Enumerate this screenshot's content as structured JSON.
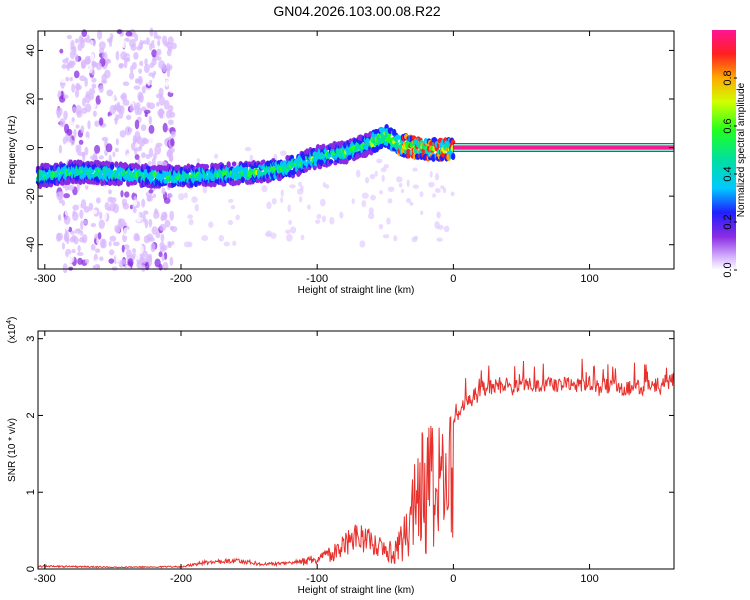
{
  "title": "GN04.2026.103.00.08.R22",
  "chart_data": [
    {
      "type": "heatmap",
      "name": "spectrogram",
      "xlabel": "Height of straight line (km)",
      "ylabel": "Frequency (Hz)",
      "xlim": [
        -305,
        162
      ],
      "ylim": [
        -50,
        48
      ],
      "xticks": [
        -300,
        -200,
        -100,
        0,
        100
      ],
      "yticks": [
        -40,
        -20,
        0,
        20,
        40
      ],
      "colorbar": {
        "label": "Normalized spectral amplitude",
        "range": [
          0,
          1
        ],
        "ticks": [
          0.0,
          0.2,
          0.4,
          0.6,
          0.8
        ]
      },
      "ridge": [
        {
          "x": -305,
          "y": -12
        },
        {
          "x": -280,
          "y": -10
        },
        {
          "x": -240,
          "y": -11
        },
        {
          "x": -220,
          "y": -12
        },
        {
          "x": -200,
          "y": -12
        },
        {
          "x": -170,
          "y": -11
        },
        {
          "x": -140,
          "y": -10
        },
        {
          "x": -120,
          "y": -8
        },
        {
          "x": -100,
          "y": -4
        },
        {
          "x": -80,
          "y": -2
        },
        {
          "x": -60,
          "y": 2
        },
        {
          "x": -50,
          "y": 5
        },
        {
          "x": -40,
          "y": 1
        },
        {
          "x": -25,
          "y": 0
        },
        {
          "x": -10,
          "y": -1
        },
        {
          "x": 0,
          "y": 0
        },
        {
          "x": 162,
          "y": 0
        }
      ],
      "noise_band": {
        "from": -290,
        "to": -205
      }
    },
    {
      "type": "line",
      "name": "snr",
      "xlabel": "Height of straight line (km)",
      "ylabel": "SNR (10 * v/v)",
      "scale_label": "(x10",
      "scale_exp": "4",
      "scale_close": ")",
      "xlim": [
        -305,
        162
      ],
      "ylim": [
        0,
        3.1
      ],
      "xticks": [
        -300,
        -200,
        -100,
        0,
        100
      ],
      "yticks": [
        0,
        1,
        2,
        3
      ],
      "color": "#e8302c",
      "envelope": [
        {
          "x": -305,
          "y": 0.05
        },
        {
          "x": -250,
          "y": 0.03
        },
        {
          "x": -200,
          "y": 0.04
        },
        {
          "x": -180,
          "y": 0.12
        },
        {
          "x": -160,
          "y": 0.15
        },
        {
          "x": -140,
          "y": 0.08
        },
        {
          "x": -120,
          "y": 0.1
        },
        {
          "x": -100,
          "y": 0.2
        },
        {
          "x": -90,
          "y": 0.3
        },
        {
          "x": -80,
          "y": 0.45
        },
        {
          "x": -70,
          "y": 0.65
        },
        {
          "x": -60,
          "y": 0.5
        },
        {
          "x": -50,
          "y": 0.4
        },
        {
          "x": -45,
          "y": 0.35
        },
        {
          "x": -40,
          "y": 0.5
        },
        {
          "x": -35,
          "y": 0.9
        },
        {
          "x": -30,
          "y": 1.4
        },
        {
          "x": -25,
          "y": 1.7
        },
        {
          "x": -20,
          "y": 1.9
        },
        {
          "x": -10,
          "y": 1.9
        },
        {
          "x": 0,
          "y": 2.0
        },
        {
          "x": 10,
          "y": 2.3
        },
        {
          "x": 20,
          "y": 2.45
        },
        {
          "x": 40,
          "y": 2.5
        },
        {
          "x": 60,
          "y": 2.5
        },
        {
          "x": 80,
          "y": 2.5
        },
        {
          "x": 100,
          "y": 2.5
        },
        {
          "x": 130,
          "y": 2.45
        },
        {
          "x": 162,
          "y": 2.55
        }
      ]
    }
  ]
}
